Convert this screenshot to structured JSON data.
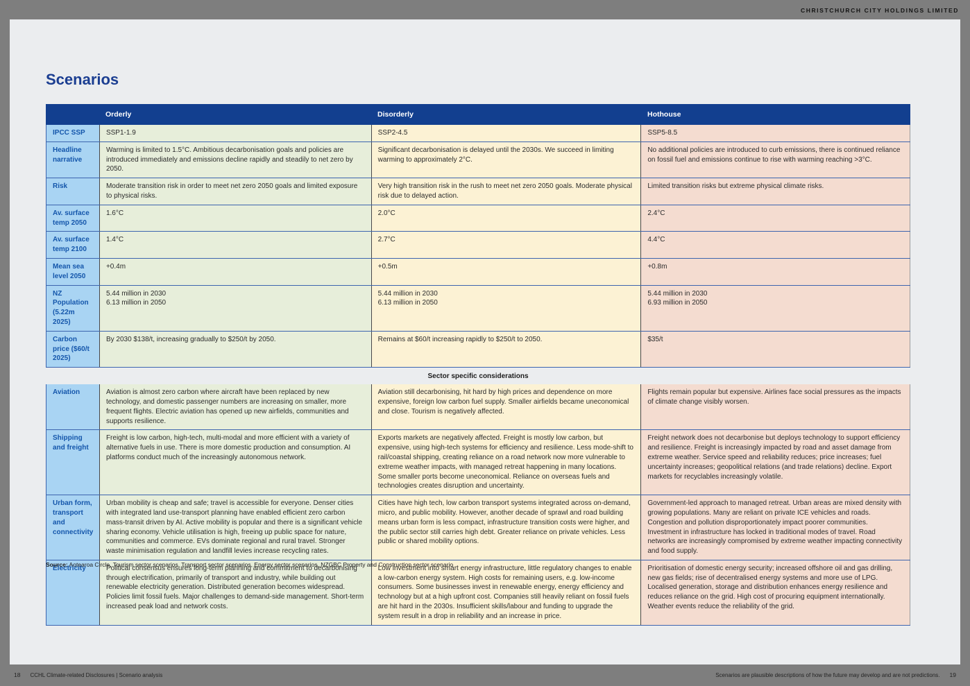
{
  "page": {
    "header_right": "CHRISTCHURCH CITY HOLDINGS LIMITED",
    "title": "Scenarios",
    "source_label": "Source:",
    "source_text": " Aotearoa Circle, Tourism sector scenarios, Transport sector scenarios, Energy sector scenarios, NZGBC Property and Construction sector scenario",
    "footer": {
      "left_page": "18",
      "left_text": "CCHL Climate-related Disclosures | Scenario analysis",
      "right_text": "Scenarios are plausible descriptions of how the future may develop and are not predictions.",
      "right_page": "19"
    }
  },
  "colors": {
    "brand_navy": "#123f8f",
    "title_blue": "#1b3e91",
    "label_blue_bg": "#a9d4f3",
    "label_blue_text": "#1456ab",
    "orderly_green": "#e7eeda",
    "disorderly_yellow": "#fcf2d4",
    "hothouse_salmon": "#f4dcd0",
    "row_border_blue": "#3c64ae",
    "page_bg": "#ebedef",
    "frame_gray": "#7e7e7e"
  },
  "table": {
    "columns": [
      "Orderly",
      "Disorderly",
      "Hothouse"
    ],
    "rows": [
      {
        "label": "IPCC SSP",
        "cells": [
          "SSP1-1.9",
          "SSP2-4.5",
          "SSP5-8.5"
        ]
      },
      {
        "label": "Headline narrative",
        "cells": [
          "Warming is limited to 1.5°C. Ambitious decarbonisation goals and policies are introduced immediately and emissions decline rapidly and steadily to net zero by 2050.",
          "Significant decarbonisation is delayed until the 2030s. We succeed in limiting warming to approximately 2°C.",
          "No additional policies are introduced to curb emissions, there is continued reliance on fossil fuel and emissions continue to rise with warming reaching >3°C."
        ]
      },
      {
        "label": "Risk",
        "cells": [
          "Moderate transition risk in order to meet net zero 2050 goals and limited exposure to physical risks.",
          "Very high transition risk in the rush to meet net zero 2050 goals. Moderate physical risk due to delayed action.",
          "Limited transition risks but extreme physical climate risks."
        ]
      },
      {
        "label": "Av. surface temp 2050",
        "cells": [
          "1.6°C",
          "2.0°C",
          "2.4°C"
        ]
      },
      {
        "label": "Av. surface temp 2100",
        "cells": [
          "1.4°C",
          "2.7°C",
          "4.4°C"
        ]
      },
      {
        "label": "Mean sea level 2050",
        "cells": [
          "+0.4m",
          "+0.5m",
          "+0.8m"
        ]
      },
      {
        "label": "NZ Population (5.22m 2025)",
        "cells": [
          "5.44 million in 2030\n6.13 million in 2050",
          "5.44 million in 2030\n6.13 million in 2050",
          "5.44 million in 2030\n6.93 million in 2050"
        ]
      },
      {
        "label": "Carbon price ($60/t 2025)",
        "cells": [
          "By 2030 $138/t, increasing gradually to $250/t by 2050.",
          "Remains at $60/t increasing rapidly to $250/t to 2050.",
          "$35/t"
        ]
      }
    ],
    "section_header": "Sector specific considerations",
    "sector_rows": [
      {
        "label": "Aviation",
        "cells": [
          "Aviation is almost zero carbon where aircraft have been replaced by new technology, and domestic passenger numbers are increasing on smaller, more frequent flights. Electric aviation has opened up new airfields, communities and supports resilience.",
          "Aviation still decarbonising, hit hard by high prices and dependence on more expensive, foreign low carbon fuel supply. Smaller airfields became uneconomical and close. Tourism is negatively affected.",
          "Flights remain popular but expensive. Airlines face social pressures as the impacts of climate change visibly worsen."
        ]
      },
      {
        "label": "Shipping and freight",
        "cells": [
          "Freight is low carbon, high-tech, multi-modal and more efficient with a variety of alternative fuels in use. There is more domestic production and consumption. AI platforms conduct much of the increasingly autonomous network.",
          "Exports markets are negatively affected. Freight is mostly low carbon, but expensive, using high-tech systems for efficiency and resilience. Less mode-shift to rail/coastal shipping, creating reliance on a road network now more vulnerable to extreme weather impacts, with managed retreat happening in many locations. Some smaller ports become uneconomical. Reliance on overseas fuels and technologies creates disruption and uncertainty.",
          "Freight network does not decarbonise but deploys technology to support efficiency and resilience. Freight is increasingly impacted by road and asset damage from extreme weather. Service speed and reliability reduces; price increases; fuel uncertainty increases; geopolitical relations (and trade relations) decline. Export markets for recyclables increasingly volatile."
        ]
      },
      {
        "label": "Urban form, transport and connectivity",
        "cells": [
          "Urban mobility is cheap and safe; travel is accessible for everyone. Denser cities with integrated land use-transport planning have enabled efficient zero carbon mass-transit driven by AI. Active mobility is popular and there is a significant vehicle sharing economy. Vehicle utilisation is high, freeing up public space for nature, communities and commerce. EVs dominate regional and rural travel. Stronger waste minimisation regulation and landfill levies increase recycling rates.",
          "Cities have high tech, low carbon transport systems integrated across on-demand, micro, and public mobility. However, another decade of sprawl and road building means urban form is less compact, infrastructure transition costs were higher, and the public sector still carries high debt. Greater reliance on private vehicles. Less public or shared mobility options.",
          "Government-led approach to managed retreat. Urban areas are mixed density with growing populations. Many are reliant on private ICE vehicles and roads. Congestion and pollution disproportionately impact poorer communities. Investment in infrastructure has locked in traditional modes of travel. Road networks are increasingly compromised by extreme weather impacting connectivity and food supply."
        ]
      },
      {
        "label": "Electricity",
        "cells": [
          "Political consensus ensures long-term planning and commitment to decarbonising through electrification, primarily of transport and industry, while building out renewable electricity generation. Distributed generation becomes widespread. Policies limit fossil fuels. Major challenges to demand-side management. Short-term increased peak load and network costs.",
          "Low investment into smart energy infrastructure, little regulatory changes to enable a low-carbon energy system. High costs for remaining users, e.g. low-income consumers. Some businesses invest in renewable energy, energy efficiency and technology but at a high upfront cost. Companies still heavily reliant on fossil fuels are hit hard in the 2030s. Insufficient skills/labour and funding to upgrade the system result in a drop in reliability and an increase in price.",
          "Prioritisation of domestic energy security; increased offshore oil and gas drilling, new gas fields; rise of decentralised energy systems and more use of LPG. Localised generation, storage and distribution enhances energy resilience and reduces reliance on the grid. High cost of procuring equipment internationally. Weather events reduce the reliability of the grid."
        ]
      }
    ]
  }
}
